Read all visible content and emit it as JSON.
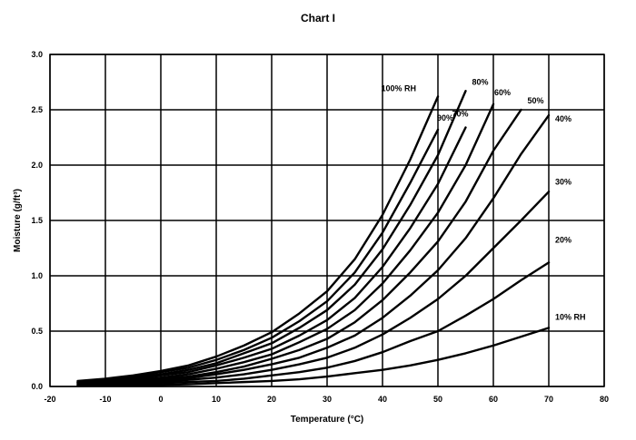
{
  "chart_data": {
    "type": "line",
    "title": "Chart I",
    "xlabel": "Temperature (°C)",
    "ylabel": "Moisture (g/ft³)",
    "xlim": [
      -20,
      80
    ],
    "ylim": [
      0,
      3.0
    ],
    "xticks": [
      "-20",
      "-10",
      "0",
      "10",
      "20",
      "30",
      "40",
      "50",
      "60",
      "70",
      "80"
    ],
    "yticks": [
      "0.0",
      "0.5",
      "1.0",
      "1.5",
      "2.0",
      "2.5",
      "3.0"
    ],
    "grid": true,
    "legend": "inline-labels",
    "series": [
      {
        "name": "100% RH",
        "x": [
          -15,
          -10,
          -5,
          0,
          5,
          10,
          15,
          20,
          25,
          30,
          35,
          40,
          45,
          50
        ],
        "y": [
          0.05,
          0.07,
          0.1,
          0.14,
          0.19,
          0.27,
          0.37,
          0.49,
          0.66,
          0.86,
          1.15,
          1.55,
          2.05,
          2.62
        ]
      },
      {
        "name": "90%",
        "x": [
          -15,
          -10,
          -5,
          0,
          5,
          10,
          15,
          20,
          25,
          30,
          35,
          40,
          45,
          50
        ],
        "y": [
          0.04,
          0.06,
          0.09,
          0.13,
          0.17,
          0.24,
          0.33,
          0.44,
          0.59,
          0.77,
          1.03,
          1.39,
          1.84,
          2.32
        ]
      },
      {
        "name": "80%",
        "x": [
          -15,
          -10,
          -5,
          0,
          5,
          10,
          15,
          20,
          25,
          30,
          35,
          40,
          45,
          50,
          55
        ],
        "y": [
          0.04,
          0.06,
          0.08,
          0.11,
          0.15,
          0.21,
          0.3,
          0.39,
          0.53,
          0.69,
          0.92,
          1.24,
          1.64,
          2.09,
          2.67
        ]
      },
      {
        "name": "70%",
        "x": [
          -15,
          -10,
          -5,
          0,
          5,
          10,
          15,
          20,
          25,
          30,
          35,
          40,
          45,
          50,
          55
        ],
        "y": [
          0.035,
          0.05,
          0.07,
          0.1,
          0.13,
          0.19,
          0.26,
          0.34,
          0.46,
          0.6,
          0.8,
          1.08,
          1.43,
          1.83,
          2.34
        ]
      },
      {
        "name": "60%",
        "x": [
          -15,
          -10,
          -5,
          0,
          5,
          10,
          15,
          20,
          25,
          30,
          35,
          40,
          45,
          50,
          55,
          60
        ],
        "y": [
          0.03,
          0.04,
          0.06,
          0.08,
          0.11,
          0.16,
          0.22,
          0.29,
          0.4,
          0.52,
          0.69,
          0.93,
          1.23,
          1.57,
          2.0,
          2.55
        ]
      },
      {
        "name": "50%",
        "x": [
          -15,
          -10,
          -5,
          0,
          5,
          10,
          15,
          20,
          25,
          30,
          35,
          40,
          45,
          50,
          55,
          60,
          65
        ],
        "y": [
          0.025,
          0.035,
          0.05,
          0.07,
          0.09,
          0.13,
          0.18,
          0.25,
          0.33,
          0.43,
          0.58,
          0.78,
          1.03,
          1.31,
          1.67,
          2.13,
          2.5
        ]
      },
      {
        "name": "40%",
        "x": [
          -15,
          -10,
          -5,
          0,
          5,
          10,
          15,
          20,
          25,
          30,
          35,
          40,
          45,
          50,
          55,
          60,
          65,
          70
        ],
        "y": [
          0.02,
          0.03,
          0.04,
          0.055,
          0.075,
          0.11,
          0.15,
          0.2,
          0.26,
          0.35,
          0.46,
          0.62,
          0.82,
          1.05,
          1.34,
          1.7,
          2.1,
          2.45
        ]
      },
      {
        "name": "30%",
        "x": [
          -15,
          -10,
          -5,
          0,
          5,
          10,
          15,
          20,
          25,
          30,
          35,
          40,
          45,
          50,
          55,
          60,
          65,
          70
        ],
        "y": [
          0.015,
          0.02,
          0.03,
          0.04,
          0.06,
          0.08,
          0.11,
          0.15,
          0.2,
          0.26,
          0.35,
          0.47,
          0.62,
          0.79,
          1.0,
          1.25,
          1.5,
          1.76
        ]
      },
      {
        "name": "20%",
        "x": [
          -15,
          -10,
          -5,
          0,
          5,
          10,
          15,
          20,
          25,
          30,
          35,
          40,
          45,
          50,
          55,
          60,
          65,
          70
        ],
        "y": [
          0.01,
          0.015,
          0.02,
          0.03,
          0.04,
          0.05,
          0.07,
          0.1,
          0.13,
          0.17,
          0.23,
          0.31,
          0.41,
          0.5,
          0.64,
          0.79,
          0.96,
          1.12
        ]
      },
      {
        "name": "10% RH",
        "x": [
          -15,
          -10,
          -5,
          0,
          5,
          10,
          15,
          20,
          25,
          30,
          35,
          40,
          45,
          50,
          55,
          60,
          65,
          70
        ],
        "y": [
          0.005,
          0.007,
          0.01,
          0.014,
          0.02,
          0.03,
          0.04,
          0.05,
          0.065,
          0.09,
          0.12,
          0.15,
          0.19,
          0.24,
          0.3,
          0.37,
          0.45,
          0.53
        ]
      }
    ]
  }
}
